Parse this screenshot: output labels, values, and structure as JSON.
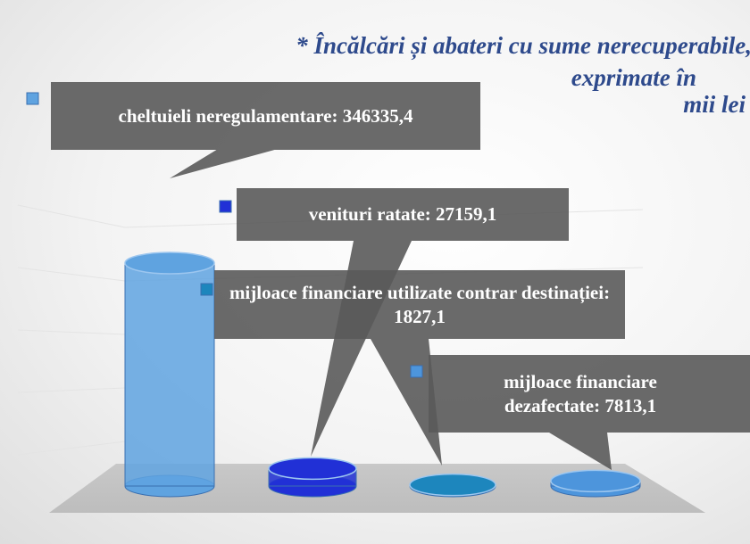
{
  "chart_data": {
    "type": "cylinder",
    "title": [
      "* Încălcări și abateri cu sume nerecuperabile,",
      "exprimate în",
      "mii lei"
    ],
    "values": [
      346335.4,
      27159.1,
      1827.1,
      7813.1
    ],
    "value_labels": [
      "cheltuieli neregulamentare: 346335,4",
      "venituri ratate: 27159,1",
      "mijloace financiare utilizate contrar destinației: 1827,1",
      "mijloace financiare dezafectate: 7813,1"
    ],
    "colors": [
      "#5fa3e0",
      "#2130d6",
      "#1d86bd",
      "#4d95dc"
    ]
  }
}
